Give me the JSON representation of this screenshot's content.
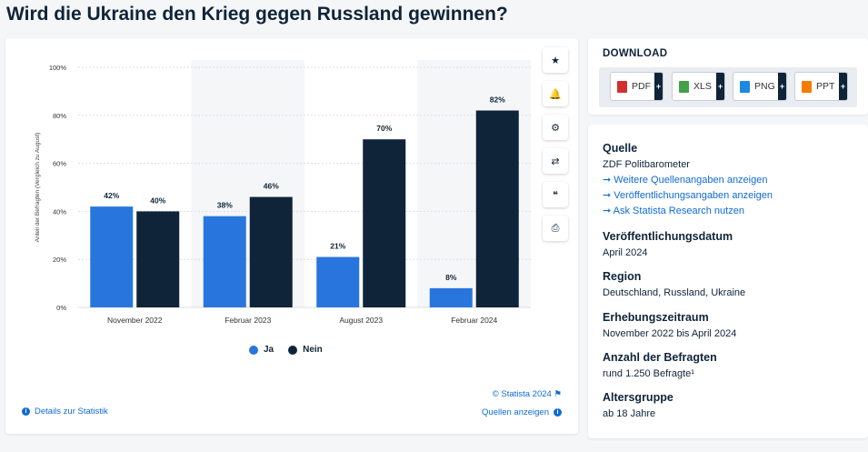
{
  "title": "Wird die Ukraine den Krieg gegen Russland gewinnen?",
  "chart_data": {
    "type": "bar",
    "categories": [
      "November 2022",
      "Februar 2023",
      "August 2023",
      "Februar 2024"
    ],
    "series": [
      {
        "name": "Ja",
        "values": [
          42,
          38,
          21,
          8
        ],
        "color": "#2876dd"
      },
      {
        "name": "Nein",
        "values": [
          40,
          46,
          70,
          82
        ],
        "color": "#0f2438"
      }
    ],
    "value_labels": {
      "Ja": [
        "42%",
        "38%",
        "21%",
        "8%"
      ],
      "Nein": [
        "40%",
        "46%",
        "70%",
        "82%"
      ]
    },
    "yticks": [
      "0%",
      "20%",
      "40%",
      "60%",
      "80%",
      "100%"
    ],
    "ylim": [
      0,
      100
    ],
    "ylabel": "Anteil der Befragten (Vergleich zu August)",
    "legend_position": "bottom",
    "grid": true
  },
  "legend": {
    "ja": "Ja",
    "nein": "Nein"
  },
  "chart_footer": {
    "copyright": "© Statista 2024",
    "details": "Details zur Statistik",
    "sources": "Quellen anzeigen"
  },
  "download": {
    "title": "DOWNLOAD",
    "buttons": [
      {
        "label": "PDF",
        "icon": "pdf-file-icon",
        "color": "#d32f2f"
      },
      {
        "label": "XLS",
        "icon": "xls-file-icon",
        "color": "#43a047"
      },
      {
        "label": "PNG",
        "icon": "png-file-icon",
        "color": "#1e88e5"
      },
      {
        "label": "PPT",
        "icon": "ppt-file-icon",
        "color": "#f57c00"
      }
    ],
    "plus": "+"
  },
  "info": {
    "source_label": "Quelle",
    "source_value": "ZDF Politbarometer",
    "links": [
      "➞ Weitere Quellenangaben anzeigen",
      "➞ Veröffentlichungsangaben anzeigen",
      "➞ Ask Statista Research nutzen"
    ],
    "release_label": "Veröffentlichungsdatum",
    "release_value": "April 2024",
    "region_label": "Region",
    "region_value": "Deutschland, Russland, Ukraine",
    "period_label": "Erhebungszeitraum",
    "period_value": "November 2022 bis April 2024",
    "respondents_label": "Anzahl der Befragten",
    "respondents_value": "rund 1.250 Befragte¹",
    "age_label": "Altersgruppe",
    "age_value": "ab 18 Jahre"
  },
  "tools": {
    "star": "★",
    "bell": "🔔",
    "gear": "⚙",
    "share": "⇄",
    "quote": "❝",
    "print": "⎙"
  }
}
